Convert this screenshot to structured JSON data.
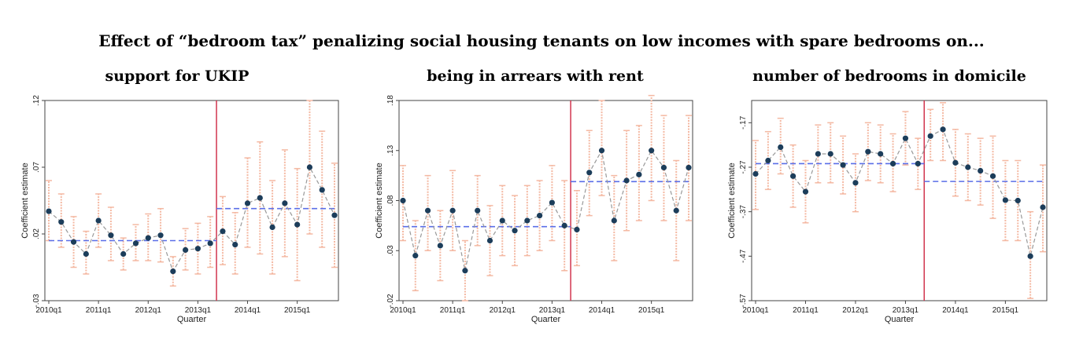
{
  "title": "Effect of “bedroom tax” penalizing social housing tenants on low incomes with spare bedrooms on...",
  "colors": {
    "point": "#1c3d5a",
    "ci": "#f4b9a3",
    "mean_line": "#5a6ee8",
    "event_line": "#d1354e",
    "connector": "#999999"
  },
  "chart_data": [
    {
      "type": "scatter",
      "title": "support for UKIP",
      "xlabel": "Quarter",
      "ylabel": "Coefficient estimate",
      "x_ticks": [
        "2010q1",
        "2011q1",
        "2012q1",
        "2013q1",
        "2014q1",
        "2015q1"
      ],
      "y_ticks": [
        "-.03",
        ".02",
        ".07",
        ".12"
      ],
      "ylim": [
        -0.03,
        0.12
      ],
      "event_quarter": "2013q2",
      "pre_mean": 0.015,
      "post_mean": 0.039,
      "quarters": [
        "2010q1",
        "2010q2",
        "2010q3",
        "2010q4",
        "2011q1",
        "2011q2",
        "2011q3",
        "2011q4",
        "2012q1",
        "2012q2",
        "2012q3",
        "2012q4",
        "2013q1",
        "2013q2",
        "2013q3",
        "2013q4",
        "2014q1",
        "2014q2",
        "2014q3",
        "2014q4",
        "2015q1",
        "2015q2",
        "2015q3",
        "2015q4"
      ],
      "estimates": [
        0.037,
        0.029,
        0.014,
        0.005,
        0.03,
        0.019,
        0.005,
        0.013,
        0.017,
        0.019,
        -0.008,
        0.008,
        0.009,
        0.013,
        0.022,
        0.012,
        0.043,
        0.047,
        0.025,
        0.043,
        0.027,
        0.07,
        0.053,
        0.034
      ],
      "ci_low": [
        0.015,
        0.01,
        -0.005,
        -0.01,
        0.01,
        0.0,
        -0.007,
        0.0,
        0.0,
        -0.001,
        -0.019,
        -0.007,
        -0.01,
        -0.005,
        -0.003,
        -0.01,
        0.01,
        0.005,
        -0.01,
        0.003,
        -0.015,
        0.02,
        0.01,
        -0.005
      ],
      "ci_high": [
        0.06,
        0.05,
        0.033,
        0.022,
        0.05,
        0.04,
        0.017,
        0.027,
        0.035,
        0.039,
        0.003,
        0.024,
        0.028,
        0.033,
        0.048,
        0.036,
        0.077,
        0.089,
        0.06,
        0.083,
        0.069,
        0.12,
        0.097,
        0.073
      ]
    },
    {
      "type": "scatter",
      "title": "being in arrears with rent",
      "xlabel": "Quarter",
      "ylabel": "Coefficient estimate",
      "x_ticks": [
        "2010q1",
        "2011q1",
        "2012q1",
        "2013q1",
        "2014q1",
        "2015q1"
      ],
      "y_ticks": [
        "-.02",
        ".03",
        ".08",
        ".13",
        ".18"
      ],
      "ylim": [
        -0.02,
        0.18
      ],
      "event_quarter": "2013q2",
      "pre_mean": 0.054,
      "post_mean": 0.099,
      "quarters": [
        "2010q1",
        "2010q2",
        "2010q3",
        "2010q4",
        "2011q1",
        "2011q2",
        "2011q3",
        "2011q4",
        "2012q1",
        "2012q2",
        "2012q3",
        "2012q4",
        "2013q1",
        "2013q2",
        "2013q3",
        "2013q4",
        "2014q1",
        "2014q2",
        "2014q3",
        "2014q4",
        "2015q1",
        "2015q2",
        "2015q3",
        "2015q4"
      ],
      "estimates": [
        0.08,
        0.025,
        0.07,
        0.035,
        0.07,
        0.01,
        0.07,
        0.04,
        0.06,
        0.05,
        0.06,
        0.065,
        0.078,
        0.055,
        0.051,
        0.108,
        0.13,
        0.06,
        0.1,
        0.106,
        0.13,
        0.113,
        0.07,
        0.113
      ],
      "ci_low": [
        0.04,
        -0.01,
        0.03,
        0.0,
        0.03,
        -0.02,
        0.035,
        0.005,
        0.025,
        0.015,
        0.025,
        0.03,
        0.04,
        0.01,
        0.015,
        0.065,
        0.085,
        0.02,
        0.05,
        0.06,
        0.08,
        0.06,
        0.02,
        0.06
      ],
      "ci_high": [
        0.115,
        0.06,
        0.105,
        0.07,
        0.11,
        0.04,
        0.105,
        0.075,
        0.095,
        0.085,
        0.095,
        0.1,
        0.115,
        0.1,
        0.09,
        0.15,
        0.18,
        0.105,
        0.15,
        0.155,
        0.185,
        0.165,
        0.12,
        0.165
      ]
    },
    {
      "type": "scatter",
      "title": "number of bedrooms in domicile",
      "xlabel": "Quarter",
      "ylabel": "Coefficient estimate",
      "x_ticks": [
        "2010q1",
        "2011q1",
        "2012q1",
        "2013q1",
        "2014q1",
        "2015q1"
      ],
      "y_ticks": [
        "-.57",
        "-.47",
        "-.37",
        "-.27",
        "-.17"
      ],
      "ylim": [
        -0.57,
        -0.12
      ],
      "event_quarter": "2013q2",
      "pre_mean": -0.262,
      "post_mean": -0.302,
      "quarters": [
        "2010q1",
        "2010q2",
        "2010q3",
        "2010q4",
        "2011q1",
        "2011q2",
        "2011q3",
        "2011q4",
        "2012q1",
        "2012q2",
        "2012q3",
        "2012q4",
        "2013q1",
        "2013q2",
        "2013q3",
        "2013q4",
        "2014q1",
        "2014q2",
        "2014q3",
        "2014q4",
        "2015q1",
        "2015q2",
        "2015q3",
        "2015q4"
      ],
      "estimates": [
        -0.285,
        -0.255,
        -0.225,
        -0.29,
        -0.325,
        -0.24,
        -0.24,
        -0.265,
        -0.305,
        -0.235,
        -0.24,
        -0.262,
        -0.205,
        -0.262,
        -0.2,
        -0.185,
        -0.26,
        -0.27,
        -0.278,
        -0.29,
        -0.344,
        -0.345,
        -0.47,
        -0.36
      ],
      "ci_low": [
        -0.365,
        -0.32,
        -0.285,
        -0.36,
        -0.395,
        -0.305,
        -0.305,
        -0.33,
        -0.37,
        -0.3,
        -0.305,
        -0.325,
        -0.265,
        -0.32,
        -0.255,
        -0.255,
        -0.335,
        -0.345,
        -0.355,
        -0.385,
        -0.435,
        -0.435,
        -0.565,
        -0.46
      ],
      "ci_high": [
        -0.21,
        -0.19,
        -0.16,
        -0.22,
        -0.255,
        -0.175,
        -0.17,
        -0.2,
        -0.24,
        -0.17,
        -0.175,
        -0.195,
        -0.145,
        -0.205,
        -0.14,
        -0.125,
        -0.185,
        -0.195,
        -0.205,
        -0.2,
        -0.255,
        -0.255,
        -0.37,
        -0.265
      ]
    }
  ]
}
